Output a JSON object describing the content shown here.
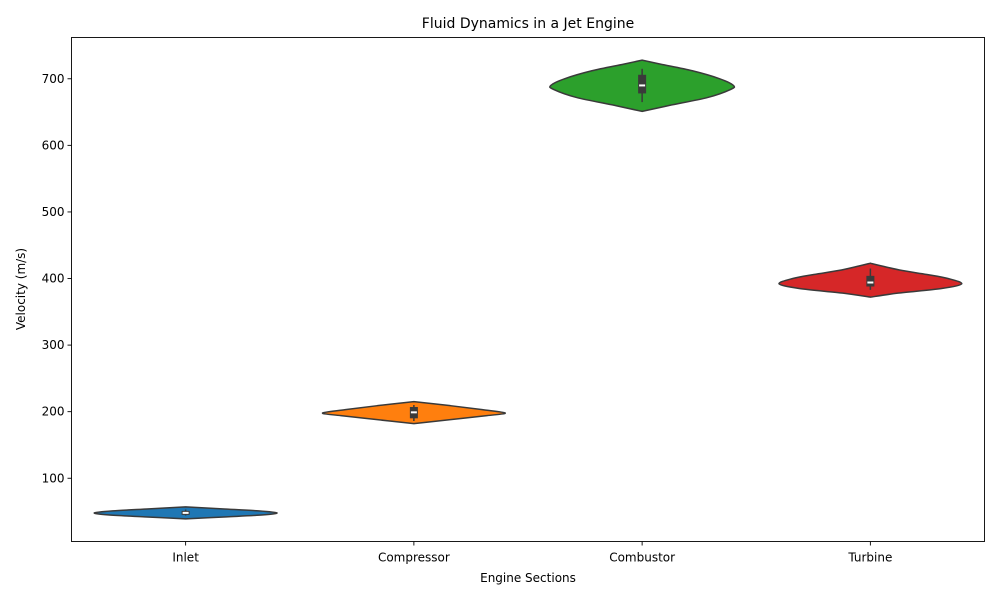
{
  "chart_data": {
    "type": "violin",
    "title": "Fluid Dynamics in a Jet Engine",
    "xlabel": "Engine Sections",
    "ylabel": "Velocity (m/s)",
    "ylim": [
      5,
      762
    ],
    "yticks": [
      100,
      200,
      300,
      400,
      500,
      600,
      700
    ],
    "grid": false,
    "categories": [
      "Inlet",
      "Compressor",
      "Combustor",
      "Turbine"
    ],
    "colors": [
      "#1f77b4",
      "#ff7f0e",
      "#2ca02c",
      "#d62728"
    ],
    "violins": [
      {
        "category": "Inlet",
        "y_min": 39,
        "y_max": 57,
        "whisker_low": 44,
        "whisker_high": 53,
        "q1": 45,
        "median": 48,
        "q3": 51,
        "profile": [
          [
            39,
            0.0
          ],
          [
            42,
            0.45
          ],
          [
            45,
            0.85
          ],
          [
            48,
            1.0
          ],
          [
            51,
            0.8
          ],
          [
            54,
            0.4
          ],
          [
            57,
            0.0
          ]
        ]
      },
      {
        "category": "Compressor",
        "y_min": 182,
        "y_max": 215,
        "whisker_low": 186,
        "whisker_high": 210,
        "q1": 190,
        "median": 199,
        "q3": 207,
        "profile": [
          [
            182,
            0.0
          ],
          [
            188,
            0.4
          ],
          [
            194,
            0.8
          ],
          [
            198,
            1.0
          ],
          [
            203,
            0.75
          ],
          [
            209,
            0.4
          ],
          [
            215,
            0.0
          ]
        ]
      },
      {
        "category": "Combustor",
        "y_min": 651,
        "y_max": 728,
        "whisker_low": 665,
        "whisker_high": 715,
        "q1": 678,
        "median": 690,
        "q3": 706,
        "profile": [
          [
            651,
            0.0
          ],
          [
            660,
            0.3
          ],
          [
            672,
            0.72
          ],
          [
            684,
            0.97
          ],
          [
            690,
            1.0
          ],
          [
            700,
            0.85
          ],
          [
            712,
            0.55
          ],
          [
            722,
            0.2
          ],
          [
            728,
            0.0
          ]
        ]
      },
      {
        "category": "Turbine",
        "y_min": 372,
        "y_max": 423,
        "whisker_low": 383,
        "whisker_high": 415,
        "q1": 388,
        "median": 394,
        "q3": 404,
        "profile": [
          [
            372,
            0.0
          ],
          [
            378,
            0.3
          ],
          [
            385,
            0.78
          ],
          [
            392,
            1.0
          ],
          [
            400,
            0.85
          ],
          [
            406,
            0.62
          ],
          [
            412,
            0.35
          ],
          [
            418,
            0.15
          ],
          [
            423,
            0.0
          ]
        ]
      }
    ]
  }
}
